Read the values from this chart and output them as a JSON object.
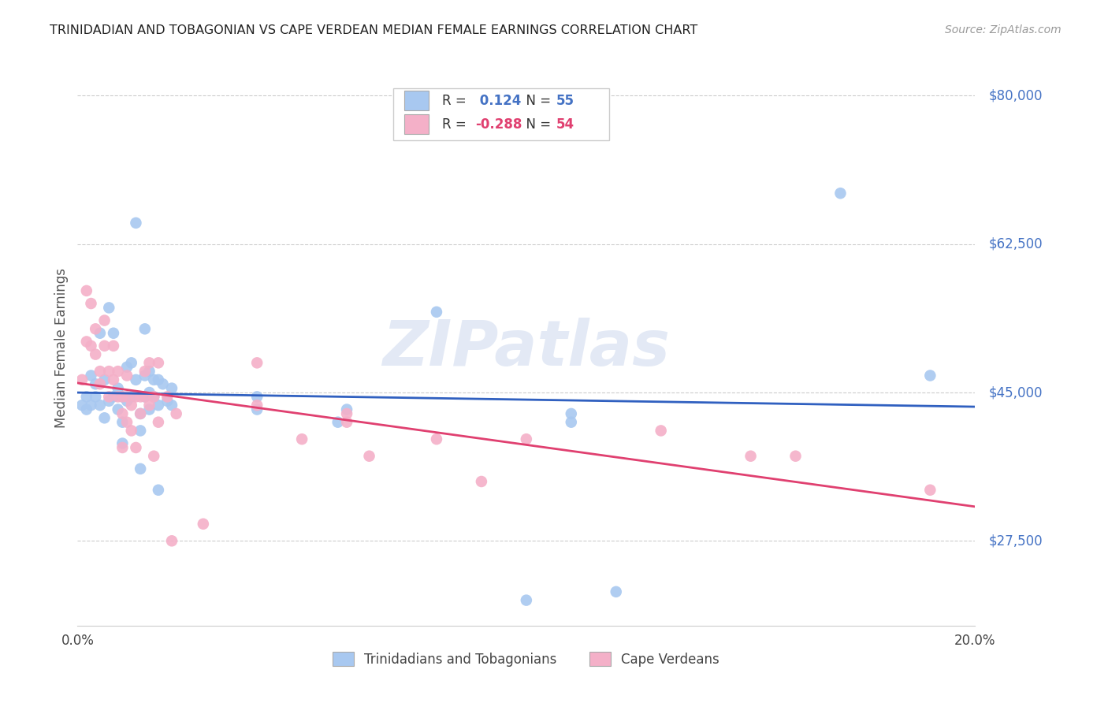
{
  "title": "TRINIDADIAN AND TOBAGONIAN VS CAPE VERDEAN MEDIAN FEMALE EARNINGS CORRELATION CHART",
  "source": "Source: ZipAtlas.com",
  "ylabel": "Median Female Earnings",
  "xmin": 0.0,
  "xmax": 0.2,
  "ymin": 17500,
  "ymax": 83000,
  "blue_color": "#a8c8f0",
  "pink_color": "#f4b0c8",
  "blue_line_color": "#3060c0",
  "pink_line_color": "#e04070",
  "r_blue": 0.124,
  "n_blue": 55,
  "r_pink": -0.288,
  "n_pink": 54,
  "legend_label_blue": "Trinidadians and Tobagonians",
  "legend_label_pink": "Cape Verdeans",
  "watermark": "ZIPatlas",
  "title_color": "#222222",
  "tick_label_color": "#4472c4",
  "grid_color": "#cccccc",
  "ytick_positions": [
    27500,
    45000,
    62500,
    80000
  ],
  "ytick_labels": [
    "$27,500",
    "$45,000",
    "$62,500",
    "$80,000"
  ],
  "blue_scatter": [
    [
      0.001,
      43500
    ],
    [
      0.002,
      44500
    ],
    [
      0.002,
      43000
    ],
    [
      0.003,
      47000
    ],
    [
      0.003,
      43500
    ],
    [
      0.004,
      46000
    ],
    [
      0.004,
      44500
    ],
    [
      0.005,
      52000
    ],
    [
      0.005,
      43500
    ],
    [
      0.006,
      46500
    ],
    [
      0.006,
      42000
    ],
    [
      0.007,
      55000
    ],
    [
      0.007,
      44000
    ],
    [
      0.008,
      52000
    ],
    [
      0.008,
      44500
    ],
    [
      0.009,
      45500
    ],
    [
      0.009,
      43000
    ],
    [
      0.01,
      44500
    ],
    [
      0.01,
      41500
    ],
    [
      0.01,
      39000
    ],
    [
      0.011,
      48000
    ],
    [
      0.011,
      44000
    ],
    [
      0.012,
      48500
    ],
    [
      0.012,
      44500
    ],
    [
      0.013,
      65000
    ],
    [
      0.013,
      46500
    ],
    [
      0.014,
      42500
    ],
    [
      0.014,
      40500
    ],
    [
      0.014,
      36000
    ],
    [
      0.015,
      52500
    ],
    [
      0.015,
      47000
    ],
    [
      0.015,
      44500
    ],
    [
      0.016,
      47500
    ],
    [
      0.016,
      45000
    ],
    [
      0.016,
      43000
    ],
    [
      0.017,
      46500
    ],
    [
      0.017,
      44500
    ],
    [
      0.018,
      46500
    ],
    [
      0.018,
      43500
    ],
    [
      0.018,
      33500
    ],
    [
      0.019,
      46000
    ],
    [
      0.02,
      44000
    ],
    [
      0.021,
      45500
    ],
    [
      0.021,
      43500
    ],
    [
      0.04,
      44500
    ],
    [
      0.04,
      43000
    ],
    [
      0.058,
      41500
    ],
    [
      0.06,
      43000
    ],
    [
      0.08,
      54500
    ],
    [
      0.1,
      20500
    ],
    [
      0.11,
      42500
    ],
    [
      0.11,
      41500
    ],
    [
      0.12,
      21500
    ],
    [
      0.17,
      68500
    ],
    [
      0.19,
      47000
    ]
  ],
  "pink_scatter": [
    [
      0.001,
      46500
    ],
    [
      0.002,
      57000
    ],
    [
      0.002,
      51000
    ],
    [
      0.003,
      55500
    ],
    [
      0.003,
      50500
    ],
    [
      0.004,
      52500
    ],
    [
      0.004,
      49500
    ],
    [
      0.005,
      47500
    ],
    [
      0.005,
      46000
    ],
    [
      0.006,
      53500
    ],
    [
      0.006,
      50500
    ],
    [
      0.007,
      47500
    ],
    [
      0.007,
      44500
    ],
    [
      0.008,
      50500
    ],
    [
      0.008,
      46500
    ],
    [
      0.009,
      47500
    ],
    [
      0.009,
      44500
    ],
    [
      0.01,
      44500
    ],
    [
      0.01,
      42500
    ],
    [
      0.01,
      38500
    ],
    [
      0.011,
      47000
    ],
    [
      0.011,
      44500
    ],
    [
      0.011,
      41500
    ],
    [
      0.012,
      43500
    ],
    [
      0.012,
      40500
    ],
    [
      0.013,
      44500
    ],
    [
      0.013,
      38500
    ],
    [
      0.014,
      44500
    ],
    [
      0.014,
      42500
    ],
    [
      0.015,
      47500
    ],
    [
      0.015,
      44500
    ],
    [
      0.016,
      48500
    ],
    [
      0.016,
      43500
    ],
    [
      0.017,
      44500
    ],
    [
      0.017,
      37500
    ],
    [
      0.018,
      48500
    ],
    [
      0.018,
      41500
    ],
    [
      0.02,
      44500
    ],
    [
      0.021,
      27500
    ],
    [
      0.022,
      42500
    ],
    [
      0.028,
      29500
    ],
    [
      0.04,
      48500
    ],
    [
      0.04,
      43500
    ],
    [
      0.05,
      39500
    ],
    [
      0.06,
      42500
    ],
    [
      0.06,
      41500
    ],
    [
      0.065,
      37500
    ],
    [
      0.08,
      39500
    ],
    [
      0.09,
      34500
    ],
    [
      0.1,
      39500
    ],
    [
      0.13,
      40500
    ],
    [
      0.15,
      37500
    ],
    [
      0.16,
      37500
    ],
    [
      0.19,
      33500
    ]
  ]
}
